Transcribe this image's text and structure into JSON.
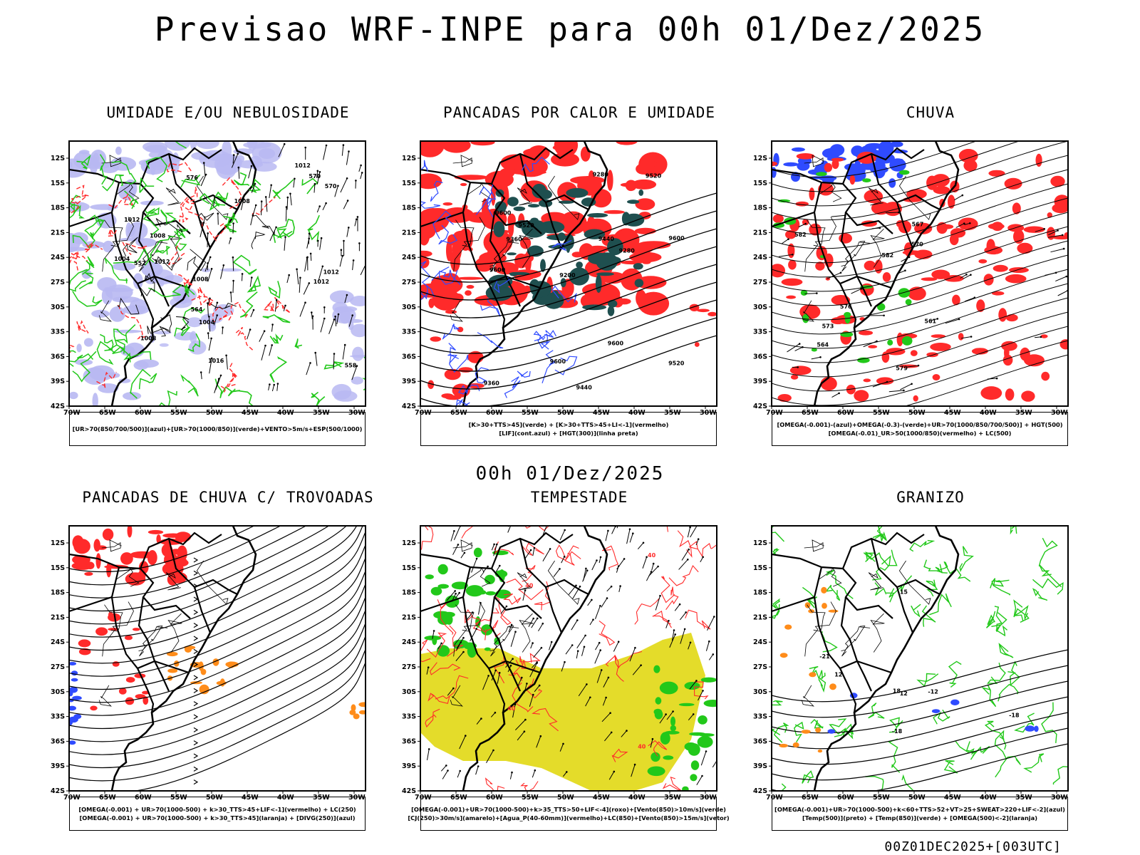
{
  "header": {
    "title": "Previsao WRF-INPE  para 00h 01/Dez/2025",
    "mid_title": "00h 01/Dez/2025",
    "footer_code": "00Z01DEC2025+[003UTC]"
  },
  "axes": {
    "lat_labels": [
      "12S",
      "15S",
      "18S",
      "21S",
      "24S",
      "27S",
      "30S",
      "33S",
      "36S",
      "39S",
      "42S"
    ],
    "lon_labels": [
      "70W",
      "65W",
      "60W",
      "55W",
      "50W",
      "45W",
      "40W",
      "35W",
      "30W"
    ]
  },
  "colors": {
    "blue": "#2f4bff",
    "green": "#22c81a",
    "red": "#ff2a2a",
    "dark_teal": "#1f4f4f",
    "yellow": "#e4dc2a",
    "orange": "#ff8c1a",
    "lavender": "#b8b8f2"
  },
  "panels": [
    {
      "id": "umidade",
      "title": "UMIDADE E/OU NEBULOSIDADE",
      "legend": [
        "[UR>70(850/700/500)](azul)+[UR>70(1000/850)](verde)+VENTO>5m/s+ESP(500/1000)"
      ],
      "contour_labels": [
        "1012",
        "1008",
        "1004",
        "1012",
        "570",
        "576",
        "1008",
        "1012",
        "1004",
        "1012",
        "1008",
        "570",
        "564",
        "558",
        "552",
        "1016",
        "1012",
        "1008"
      ]
    },
    {
      "id": "pancadas-calor",
      "title": "PANCADAS POR CALOR E UMIDADE",
      "legend": [
        "[K>30+TTS>45](verde) + [K>30+TTS>45+LI<-1](vermelho)",
        "[LIF](cont.azul) + [HGT(300)](linha preta)"
      ],
      "contour_labels": [
        "9600",
        "9600",
        "9600",
        "9600",
        "9520",
        "9600",
        "9520",
        "9520",
        "9440",
        "9440",
        "9360",
        "9360",
        "9280",
        "9280",
        "9200"
      ]
    },
    {
      "id": "chuva",
      "title": "CHUVA",
      "legend": [
        "[OMEGA(-0.001)-(azul)+OMEGA(-0.3)-(verde)+UR>70(1000/850/700/500)] + HGT(500)",
        "[OMEGA(-0.01)_UR>50(1000/850)(vermelho) + LC(500)"
      ],
      "contour_labels": [
        "582",
        "582",
        "579",
        "576",
        "573",
        "570",
        "567",
        "564",
        "561"
      ]
    },
    {
      "id": "pancadas-trovoadas",
      "title": "PANCADAS DE CHUVA C/ TROVOADAS",
      "legend": [
        "[OMEGA(-0.001) + UR>70(1000-500) + k>30_TTS>45+LIF<-1](vermelho) + LC(250)",
        "[OMEGA(-0.001) + UR>70(1000-500) + k>30_TTS>45](laranja) + [DIVG(250)](azul)"
      ],
      "contour_labels": []
    },
    {
      "id": "tempestade",
      "title": "TEMPESTADE",
      "legend": [
        "[OMEGA(-0.001)+UR>70(1000-500)+k>35_TTS>50+LIF<-4](roxo)+[Vento(850)>10m/s](verde)",
        "[CJ(250)>30m/s](amarelo)+[Agua_P(40-60mm)](vermelho)+LC(850)+[Vento(850)>15m/s](vetor)"
      ],
      "contour_labels": [
        "40",
        "40",
        "40",
        "40"
      ]
    },
    {
      "id": "granizo",
      "title": "GRANIZO",
      "legend": [
        "[OMEGA(-0.001)+UR>70(1000-500)+k<60+TTS>52+VT>25+SWEAT>220+LIF<-2](azul)",
        "[Temp(500)](preto) + [Temp(850)](verde) + [OMEGA(500)<-2](laranja)"
      ],
      "contour_labels": [
        "12",
        "12",
        "-18",
        "-12",
        "-15",
        "-18",
        "-21",
        "18"
      ]
    }
  ]
}
